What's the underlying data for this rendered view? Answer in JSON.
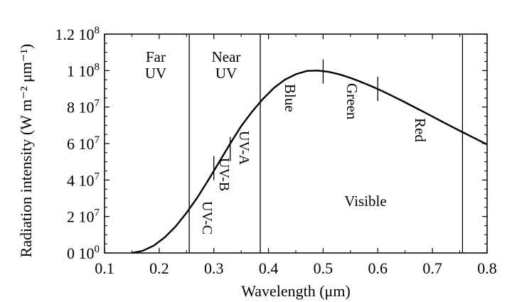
{
  "chart_data": {
    "type": "line",
    "xlabel": "Wavelength (μm)",
    "ylabel": "Radiation intensity (W m⁻² μm⁻¹)",
    "xlim": [
      0.1,
      0.8
    ],
    "ylim": [
      0,
      120000000
    ],
    "x_ticks": [
      0.1,
      0.2,
      0.3,
      0.4,
      0.5,
      0.6,
      0.7,
      0.8
    ],
    "x_tick_labels": [
      "0.1",
      "0.2",
      "0.3",
      "0.4",
      "0.5",
      "0.6",
      "0.7",
      "0.8"
    ],
    "y_ticks": [
      0,
      20000000,
      40000000,
      60000000,
      80000000,
      100000000,
      120000000
    ],
    "y_tick_labels": [
      {
        "mant": "0 10",
        "exp": "0"
      },
      {
        "mant": "2 10",
        "exp": "7"
      },
      {
        "mant": "4 10",
        "exp": "7"
      },
      {
        "mant": "6 10",
        "exp": "7"
      },
      {
        "mant": "8 10",
        "exp": "7"
      },
      {
        "mant": "1 10",
        "exp": "8"
      },
      {
        "mant": "1.2 10",
        "exp": "8"
      }
    ],
    "grid": false,
    "series": [
      {
        "values_x": [
          0.15,
          0.17,
          0.19,
          0.21,
          0.23,
          0.25,
          0.27,
          0.29,
          0.31,
          0.33,
          0.35,
          0.37,
          0.39,
          0.41,
          0.43,
          0.45,
          0.47,
          0.49,
          0.51,
          0.53,
          0.55,
          0.57,
          0.59,
          0.61,
          0.63,
          0.65,
          0.67,
          0.69,
          0.71,
          0.73,
          0.75,
          0.77,
          0.79,
          0.8
        ],
        "values_y": [
          0,
          1200000,
          4000000,
          8500000,
          14500000,
          22000000,
          30500000,
          40000000,
          50000000,
          60000000,
          69500000,
          77500000,
          84500000,
          90500000,
          95000000,
          98000000,
          99800000,
          100000000,
          99300000,
          97900000,
          96000000,
          93700000,
          91200000,
          88500000,
          85600000,
          82600000,
          79500000,
          76400000,
          73200000,
          70100000,
          67000000,
          64000000,
          61000000,
          59500000
        ]
      }
    ],
    "boundaries": [
      0.255,
      0.385,
      0.755
    ],
    "curve_marks": [
      {
        "x": 0.3,
        "y": 46500000
      },
      {
        "x": 0.33,
        "y": 57000000
      },
      {
        "x": 0.5,
        "y": 99500000
      },
      {
        "x": 0.6,
        "y": 90000000
      }
    ],
    "annotations": {
      "far_uv": [
        "Far",
        "UV"
      ],
      "near_uv": [
        "Near",
        "UV"
      ],
      "uv_a": "UV-A",
      "uv_b": "UV-B",
      "uv_c": "UV-C",
      "blue": "Blue",
      "green": "Green",
      "red": "Red",
      "visible": "Visible"
    }
  }
}
